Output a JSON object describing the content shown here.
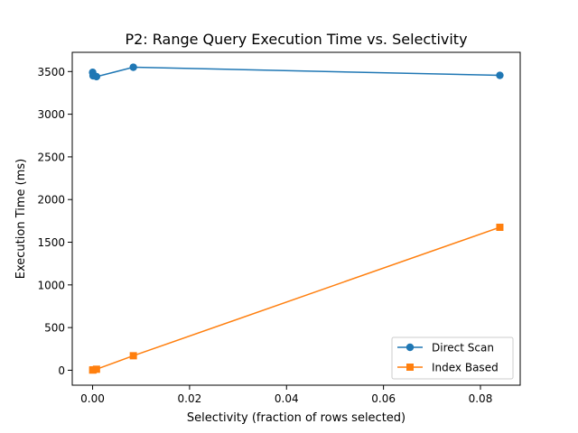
{
  "chart_data": {
    "type": "line",
    "title": "P2: Range Query Execution Time vs. Selectivity",
    "xlabel": "Selectivity (fraction of rows selected)",
    "ylabel": "Execution Time (ms)",
    "xlim": [
      -0.0042,
      0.0882
    ],
    "ylim": [
      -175,
      3725
    ],
    "xticks": [
      0.0,
      0.02,
      0.04,
      0.06,
      0.08
    ],
    "xtick_labels": [
      "0.00",
      "0.02",
      "0.04",
      "0.06",
      "0.08"
    ],
    "yticks": [
      0,
      500,
      1000,
      1500,
      2000,
      2500,
      3000,
      3500
    ],
    "ytick_labels": [
      "0",
      "500",
      "1000",
      "1500",
      "2000",
      "2500",
      "3000",
      "3500"
    ],
    "grid": false,
    "legend_position": "lower right",
    "series": [
      {
        "name": "Direct Scan",
        "color": "#1f77b4",
        "marker": "circle",
        "x": [
          1e-05,
          0.0001,
          0.0008,
          0.0084,
          0.084
        ],
        "y": [
          3490,
          3450,
          3440,
          3550,
          3455
        ]
      },
      {
        "name": "Index Based",
        "color": "#ff7f0e",
        "marker": "square",
        "x": [
          1e-05,
          0.0001,
          0.0008,
          0.0084,
          0.084
        ],
        "y": [
          2,
          5,
          12,
          170,
          1675
        ]
      }
    ]
  }
}
